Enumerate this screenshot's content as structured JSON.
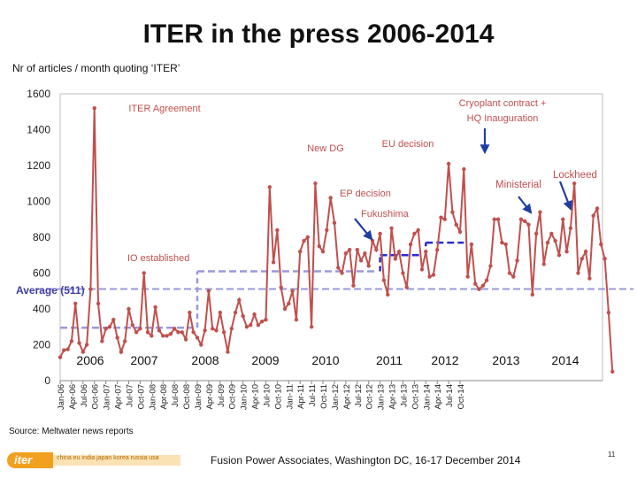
{
  "title": "ITER in the press 2006-2014",
  "subtitle": "Nr of articles / month quoting ‘ITER’",
  "source": "Source: Meltwater news reports",
  "footer": "Fusion Power Associates, Washington DC, 16-17 December 2014",
  "page_number": "11",
  "logo": {
    "name": "iter",
    "tagline": "china eu india japan korea russia usa"
  },
  "colors": {
    "series": "#c0504d",
    "average": "#9999dd",
    "means": "#2b2bcf",
    "arrow": "#1f3fa0",
    "annotation": "#c0504d",
    "background": "#ffffff"
  },
  "chart_data": {
    "type": "line",
    "title": "ITER in the press 2006-2014",
    "xlabel": "",
    "ylabel": "Nr of articles / month quoting ‘ITER’",
    "ylim": [
      0,
      1600
    ],
    "yticks": [
      0,
      200,
      400,
      600,
      800,
      1000,
      1200,
      1400,
      1600
    ],
    "grid": false,
    "x_tick_labels": [
      "Jan-06",
      "Apr-06",
      "Jul-06",
      "Oct-06",
      "Jan-07",
      "Apr-07",
      "Jul-07",
      "Oct-07",
      "Jan-08",
      "Apr-08",
      "Jul-08",
      "Oct-08",
      "Jan-09",
      "Apr-09",
      "Jul-09",
      "Oct-09",
      "Jan-10",
      "Apr-10",
      "Jul-10",
      "Oct-10",
      "Jan-11",
      "Apr-11",
      "Jul-11",
      "Oct-11",
      "Jan-12",
      "Apr-12",
      "Jul-12",
      "Oct-12",
      "Jan-13",
      "Apr-13",
      "Jul-13",
      "Oct-13",
      "Jan-14",
      "Apr-14",
      "Jul-14",
      "Oct-14"
    ],
    "year_labels": [
      "2006",
      "2007",
      "2008",
      "2009",
      "2010",
      "2011",
      "2012",
      "2013",
      "2014"
    ],
    "series": [
      {
        "values": [
          130,
          170,
          175,
          220,
          430,
          210,
          160,
          200,
          510,
          1520,
          430,
          220,
          290,
          300,
          340,
          240,
          160,
          220,
          400,
          310,
          270,
          290,
          600,
          270,
          250,
          410,
          280,
          250,
          250,
          260,
          290,
          270,
          270,
          230,
          380,
          270,
          240,
          200,
          280,
          500,
          290,
          280,
          380,
          270,
          160,
          290,
          380,
          450,
          360,
          300,
          310,
          370,
          310,
          330,
          340,
          1080,
          660,
          840,
          520,
          400,
          430,
          500,
          340,
          720,
          780,
          800,
          300,
          1100,
          750,
          720,
          840,
          1020,
          880,
          630,
          600,
          710,
          730,
          530,
          730,
          670,
          710,
          640,
          780,
          730,
          820,
          560,
          480,
          850,
          680,
          720,
          600,
          520,
          760,
          820,
          840,
          620,
          720,
          580,
          590,
          730,
          910,
          900,
          1210,
          940,
          870,
          830,
          1180,
          580,
          760,
          540,
          510,
          530,
          560,
          640,
          900,
          900,
          770,
          760,
          600,
          580,
          670,
          900,
          890,
          870,
          480,
          820,
          940,
          650,
          770,
          820,
          780,
          700,
          900,
          720,
          850,
          1100,
          600,
          680,
          720,
          570,
          920,
          960,
          760,
          680,
          380,
          50
        ]
      }
    ],
    "average": {
      "label": "Average (511)",
      "value": 511
    },
    "yearly_means": [
      {
        "years": "2006-2008",
        "value": 295
      },
      {
        "years": "2009-2012",
        "value": 610
      },
      {
        "years": "2013",
        "value": 700
      },
      {
        "years": "2014",
        "value": 770
      }
    ],
    "annotations": [
      "ITER Agreement",
      "Cryoplant contract +",
      "HQ Inauguration",
      "EU decision",
      "New DG",
      "Ministerial",
      "Lockheed",
      "EP decision",
      "Fukushima",
      "IO established"
    ]
  }
}
